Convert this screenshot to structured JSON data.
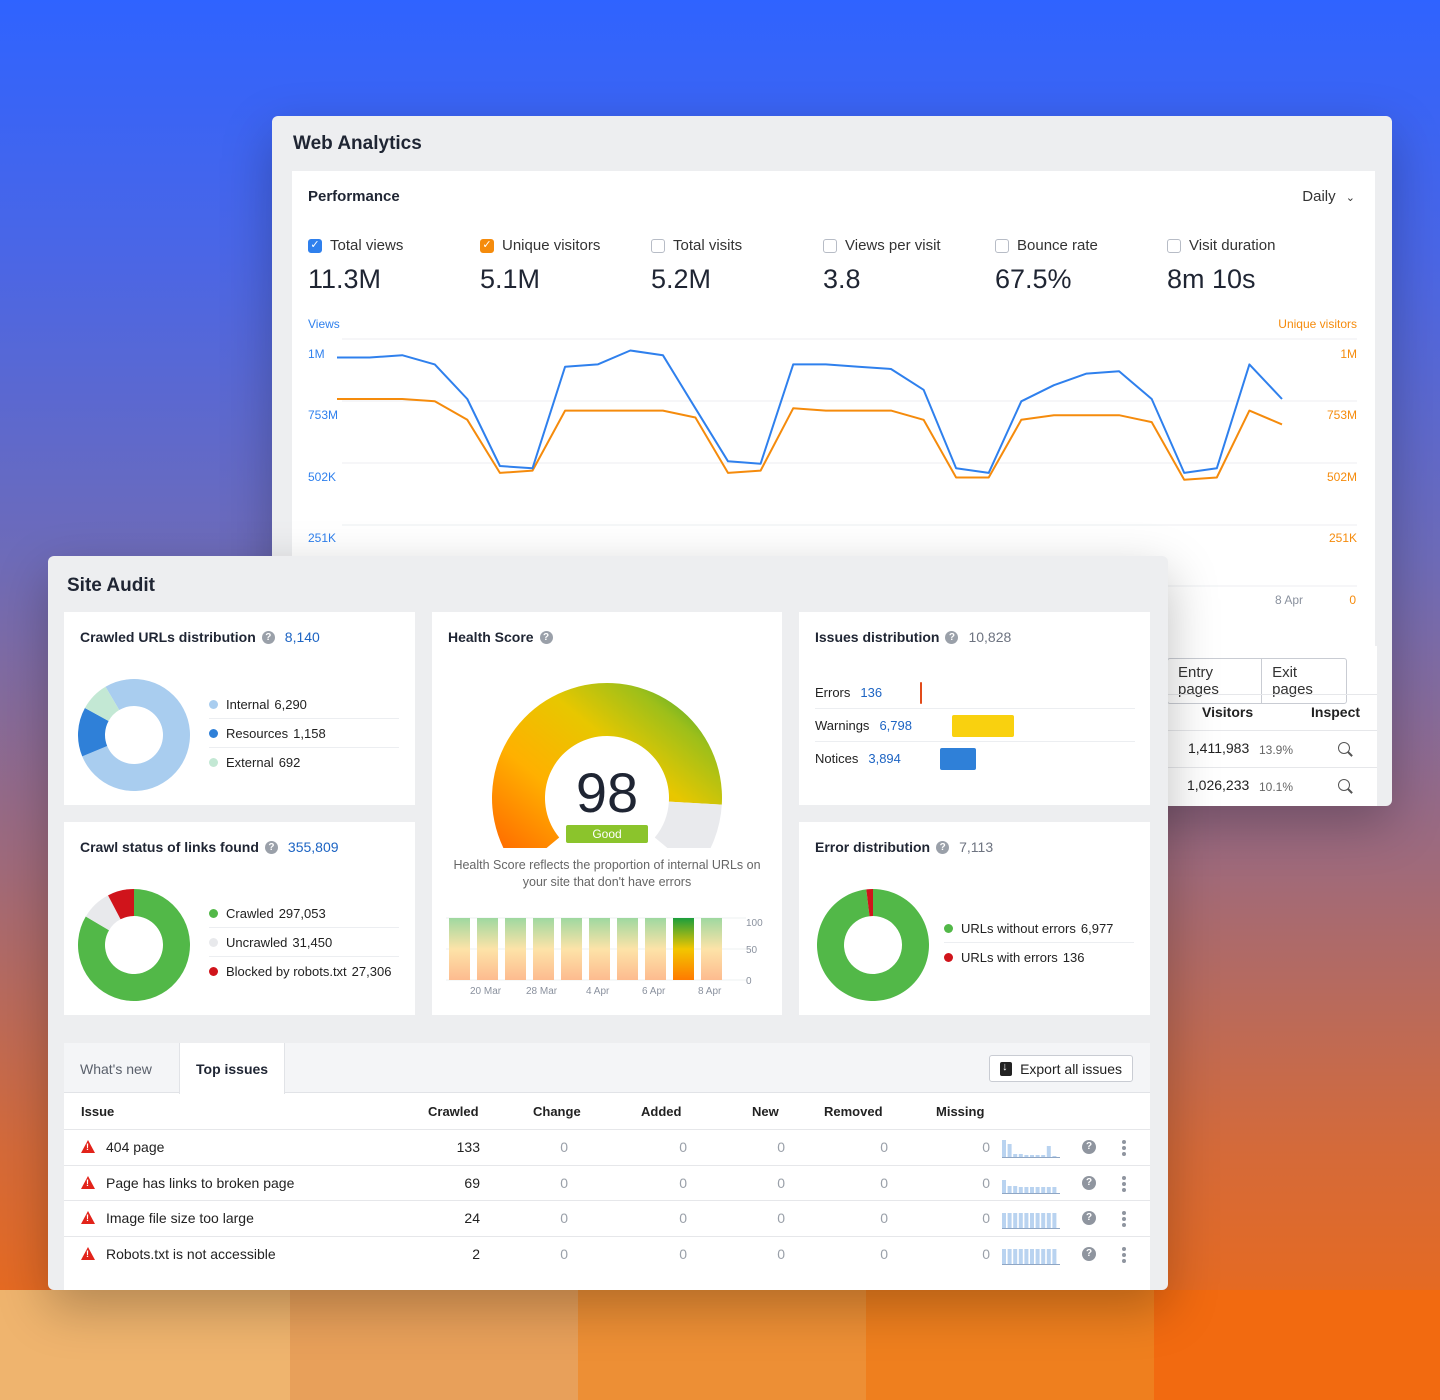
{
  "web_analytics": {
    "title": "Web Analytics",
    "performance": {
      "title": "Performance",
      "period": "Daily",
      "metrics": [
        {
          "label": "Total views",
          "value": "11.3M",
          "checked": true,
          "color": "#2f80ed"
        },
        {
          "label": "Unique visitors",
          "value": "5.1M",
          "checked": true,
          "color": "#f58b0c"
        },
        {
          "label": "Total visits",
          "value": "5.2M",
          "checked": false
        },
        {
          "label": "Views per visit",
          "value": "3.8",
          "checked": false
        },
        {
          "label": "Bounce rate",
          "value": "67.5%",
          "checked": false
        },
        {
          "label": "Visit duration",
          "value": "8m 10s",
          "checked": false
        }
      ]
    },
    "table": {
      "tabs": [
        "Entry pages",
        "Exit pages"
      ],
      "headers": {
        "visitors": "Visitors",
        "inspect": "Inspect"
      },
      "rows": [
        {
          "visitors": "1,411,983",
          "pct": "13.9%"
        },
        {
          "visitors": "1,026,233",
          "pct": "10.1%"
        }
      ]
    }
  },
  "chart_data": {
    "type": "line",
    "left_axis_label": "Views",
    "right_axis_label": "Unique visitors",
    "left_ticks": [
      "1M",
      "753M",
      "502K",
      "251K"
    ],
    "right_ticks": [
      "1M",
      "753M",
      "502M",
      "251K",
      "0"
    ],
    "x_tick_visible": "8 Apr",
    "series": [
      {
        "name": "Views",
        "color": "#2f80ed",
        "values": [
          0.99,
          0.99,
          1.0,
          0.96,
          0.81,
          0.52,
          0.51,
          0.95,
          0.96,
          1.02,
          1.0,
          0.77,
          0.54,
          0.53,
          0.96,
          0.96,
          0.95,
          0.94,
          0.85,
          0.51,
          0.49,
          0.8,
          0.87,
          0.92,
          0.93,
          0.81,
          0.49,
          0.51,
          0.96,
          0.81
        ]
      },
      {
        "name": "Unique visitors",
        "color": "#f58b0c",
        "values": [
          0.81,
          0.81,
          0.81,
          0.8,
          0.72,
          0.49,
          0.5,
          0.76,
          0.76,
          0.76,
          0.76,
          0.73,
          0.49,
          0.5,
          0.77,
          0.76,
          0.76,
          0.76,
          0.72,
          0.47,
          0.47,
          0.72,
          0.74,
          0.74,
          0.74,
          0.71,
          0.46,
          0.47,
          0.76,
          0.7
        ]
      }
    ],
    "ylim": [
      0,
      1.07
    ]
  },
  "site_audit": {
    "title": "Site Audit",
    "crawled_urls": {
      "title": "Crawled URLs distribution",
      "total": "8,140",
      "items": [
        {
          "label": "Internal",
          "value": "6,290",
          "n": 6290,
          "color": "#a9cdef"
        },
        {
          "label": "Resources",
          "value": "1,158",
          "n": 1158,
          "color": "#2f80d8"
        },
        {
          "label": "External",
          "value": "692",
          "n": 692,
          "color": "#c3e8d4"
        }
      ]
    },
    "crawl_status": {
      "title": "Crawl status of links found",
      "total": "355,809",
      "items": [
        {
          "label": "Crawled",
          "value": "297,053",
          "n": 297053,
          "color": "#52b848"
        },
        {
          "label": "Uncrawled",
          "value": "31,450",
          "n": 31450,
          "color": "#e8e9ec"
        },
        {
          "label": "Blocked by robots.txt",
          "value": "27,306",
          "n": 27306,
          "color": "#d0141b"
        }
      ]
    },
    "health": {
      "title": "Health Score",
      "score": "98",
      "score_n": 98,
      "badge": "Good",
      "note": "Health Score reflects the proportion of internal URLs on your site that don't have errors",
      "history_ticks_y": [
        "100",
        "50",
        "0"
      ],
      "history_ticks_x": [
        "20 Mar",
        "28 Mar",
        "4 Apr",
        "6 Apr",
        "8 Apr"
      ]
    },
    "issues_distribution": {
      "title": "Issues distribution",
      "total": "10,828",
      "items": [
        {
          "label": "Errors",
          "value": "136",
          "n": 136,
          "color": "#e24b1a"
        },
        {
          "label": "Warnings",
          "value": "6,798",
          "n": 6798,
          "color": "#f9d10f"
        },
        {
          "label": "Notices",
          "value": "3,894",
          "n": 3894,
          "color": "#2f80d8"
        }
      ]
    },
    "error_distribution": {
      "title": "Error distribution",
      "total": "7,113",
      "items": [
        {
          "label": "URLs without errors",
          "value": "6,977",
          "n": 6977,
          "color": "#52b848"
        },
        {
          "label": "URLs with errors",
          "value": "136",
          "n": 136,
          "color": "#d0141b"
        }
      ]
    },
    "issues_table": {
      "tabs": [
        "What's new",
        "Top issues"
      ],
      "export": "Export all issues",
      "headers": {
        "issue": "Issue",
        "crawled": "Crawled",
        "change": "Change",
        "added": "Added",
        "new": "New",
        "removed": "Removed",
        "missing": "Missing"
      },
      "rows": [
        {
          "issue": "404 page",
          "crawled": "133",
          "change": "0",
          "added": "0",
          "new": "0",
          "removed": "0",
          "missing": "0"
        },
        {
          "issue": "Page has links to broken page",
          "crawled": "69",
          "change": "0",
          "added": "0",
          "new": "0",
          "removed": "0",
          "missing": "0"
        },
        {
          "issue": "Image file size too large",
          "crawled": "24",
          "change": "0",
          "added": "0",
          "new": "0",
          "removed": "0",
          "missing": "0"
        },
        {
          "issue": "Robots.txt is not accessible",
          "crawled": "2",
          "change": "0",
          "added": "0",
          "new": "0",
          "removed": "0",
          "missing": "0"
        }
      ]
    }
  }
}
